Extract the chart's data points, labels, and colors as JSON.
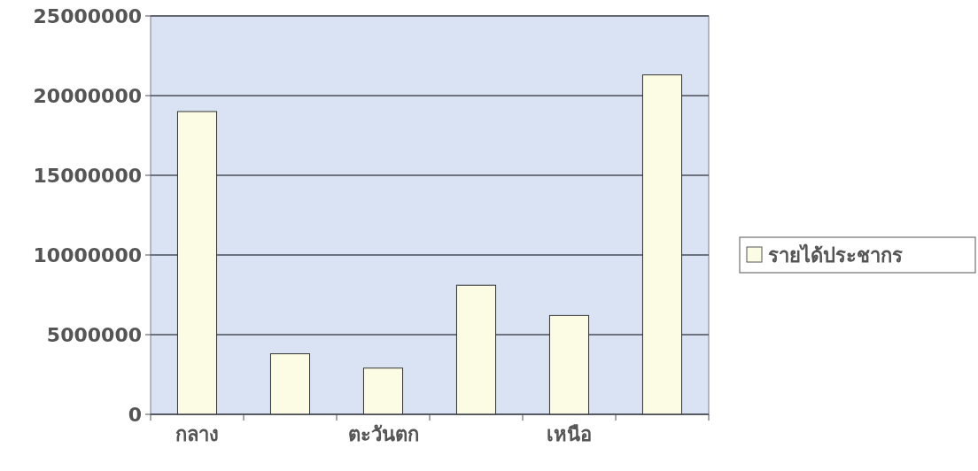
{
  "chart_data": {
    "type": "bar",
    "categories": [
      "กลาง",
      null,
      "ตะวันตก",
      null,
      "เหนือ",
      null
    ],
    "series": [
      {
        "name": "รายได้ประชากร",
        "color": "#fcfce4",
        "values": [
          19000000,
          3800000,
          2900000,
          8100000,
          6200000,
          21300000
        ]
      }
    ],
    "ylim": [
      0,
      25000000
    ],
    "yticks": [
      0,
      5000000,
      10000000,
      15000000,
      20000000,
      25000000
    ],
    "grid": "y",
    "legend": "right"
  }
}
